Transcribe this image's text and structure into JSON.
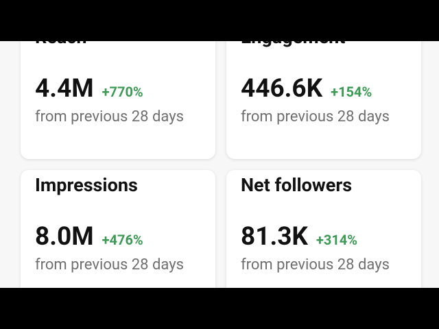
{
  "cards": [
    {
      "title": "Reach",
      "value": "4.4M",
      "change": "+770%",
      "note": "from previous 28 days"
    },
    {
      "title": "Engagement",
      "value": "446.6K",
      "change": "+154%",
      "note": "from previous 28 days"
    },
    {
      "title": "Impressions",
      "value": "8.0M",
      "change": "+476%",
      "note": "from previous 28 days"
    },
    {
      "title": "Net followers",
      "value": "81.3K",
      "change": "+314%",
      "note": "from previous 28 days"
    }
  ]
}
